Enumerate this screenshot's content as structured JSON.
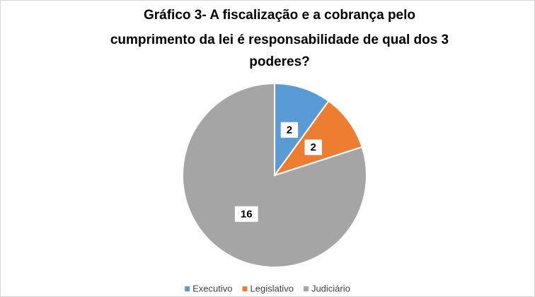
{
  "chart_data": {
    "type": "pie",
    "title": [
      "Gráfico 3- A fiscalização e a cobrança pelo",
      "cumprimento da lei é responsabilidade de qual dos 3",
      "poderes?"
    ],
    "categories": [
      "Executivo",
      "Legislativo",
      "Judiciário"
    ],
    "values": [
      2,
      2,
      16
    ],
    "colors": [
      "#5b9bd5",
      "#ed7d31",
      "#a5a5a5"
    ],
    "legend": "bottom"
  }
}
